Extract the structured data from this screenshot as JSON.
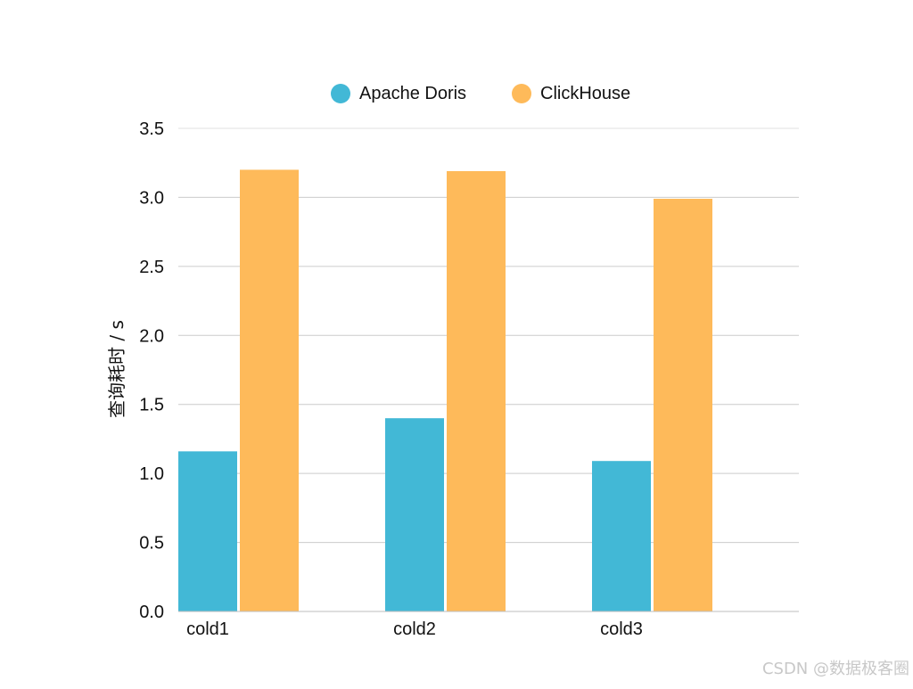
{
  "chart_data": {
    "type": "bar",
    "title": "",
    "xlabel": "",
    "ylabel": "查询耗时 / s",
    "categories": [
      "cold1",
      "cold2",
      "cold3"
    ],
    "series": [
      {
        "name": "Apache Doris",
        "values": [
          1.16,
          1.4,
          1.09
        ],
        "color": "#42b8d6"
      },
      {
        "name": "ClickHouse",
        "values": [
          3.2,
          3.19,
          2.99
        ],
        "color": "#feba5a"
      }
    ],
    "ylim": [
      0,
      3.5
    ],
    "yticks": [
      "0.0",
      "0.5",
      "1.0",
      "1.5",
      "2.0",
      "2.5",
      "3.0",
      "3.5"
    ],
    "grid": true,
    "legend_position": "top-center",
    "gridline_color": "#cccccc"
  },
  "watermark": "CSDN @数据极客圈"
}
